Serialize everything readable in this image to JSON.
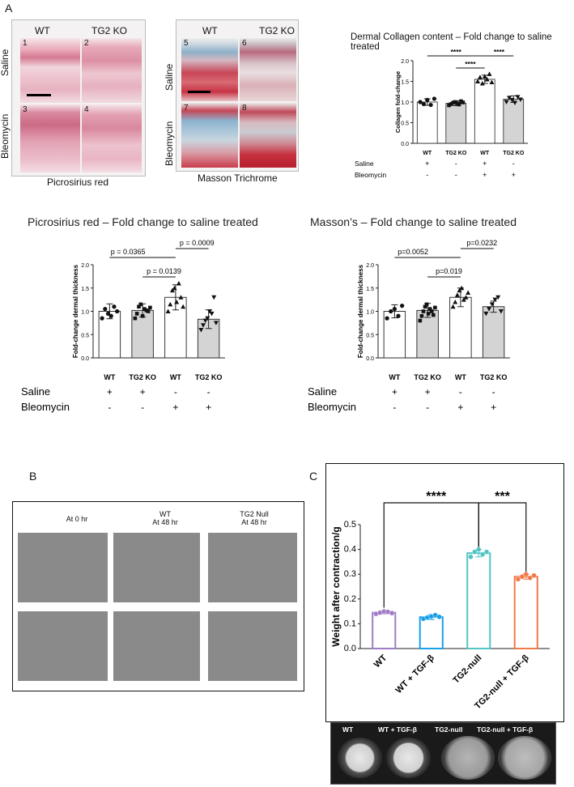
{
  "panel_letters": {
    "a": "A",
    "b": "B",
    "c": "C"
  },
  "micro": {
    "picro": {
      "col_wt": "WT",
      "col_ko": "TG2 KO",
      "row_saline": "Saline",
      "row_bleo": "Bleomycin",
      "tiles": [
        "1",
        "2",
        "3",
        "4"
      ],
      "caption": "Picrosirius red"
    },
    "masson": {
      "col_wt": "WT",
      "col_ko": "TG2 KO",
      "row_saline": "Saline",
      "row_bleo": "Bleomycin",
      "tiles": [
        "5",
        "6",
        "7",
        "8"
      ],
      "caption": "Masson Trichrome"
    }
  },
  "colors": {
    "pink_stain": "#e6a3b4",
    "red_stain": "#c8283c",
    "blue_stain": "#7aa7c9",
    "grey_bar": "#d4d4d4"
  },
  "condition_rows": {
    "saline": "Saline",
    "bleomycin": "Bleomycin",
    "plus": "+",
    "minus": "-",
    "small_saline": [
      "+",
      "-",
      "+",
      "-"
    ],
    "small_bleo": [
      "-",
      "-",
      "+",
      "+"
    ],
    "big_saline": [
      "+",
      "+",
      "-",
      "-"
    ],
    "big_bleo": [
      "-",
      "-",
      "+",
      "+"
    ]
  },
  "chart_data": [
    {
      "type": "bar",
      "title": "Dermal Collagen content – Fold change to saline treated",
      "ylabel": "Collagen fold-change",
      "categories": [
        "WT",
        "TG2 KO",
        "WT",
        "TG2 KO"
      ],
      "values": [
        1.0,
        0.97,
        1.55,
        1.07
      ],
      "errors": [
        0.08,
        0.06,
        0.1,
        0.08
      ],
      "fills": [
        "#ffffff",
        "#d4d4d4",
        "#ffffff",
        "#d4d4d4"
      ],
      "ylim": [
        0,
        2.0
      ],
      "yticks": [
        "0.0",
        "0.5",
        "1.0",
        "1.5",
        "2.0"
      ],
      "significance": [
        "****",
        "****",
        "****"
      ],
      "points": [
        [
          1.0,
          0.95,
          1.05,
          0.93,
          1.08
        ],
        [
          0.92,
          0.95,
          0.98,
          1.0,
          0.97,
          0.94,
          1.02,
          0.99
        ],
        [
          1.5,
          1.6,
          1.45,
          1.62,
          1.55,
          1.68,
          1.48
        ],
        [
          1.0,
          1.1,
          1.05,
          0.98,
          1.12,
          1.06
        ]
      ]
    },
    {
      "type": "bar",
      "title": "Picrosirius red – Fold change to saline treated",
      "ylabel": "Fold-change dermal thickness",
      "categories": [
        "WT",
        "TG2 KO",
        "WT",
        "TG2 KO"
      ],
      "values": [
        1.0,
        1.02,
        1.3,
        0.83
      ],
      "errors": [
        0.16,
        0.14,
        0.27,
        0.2
      ],
      "fills": [
        "#ffffff",
        "#d4d4d4",
        "#ffffff",
        "#d4d4d4"
      ],
      "ylim": [
        0,
        2.0
      ],
      "yticks": [
        "0.0",
        "0.5",
        "1.0",
        "1.5",
        "2.0"
      ],
      "pvalues": [
        "p = 0.0365",
        "p = 0.0009",
        "p = 0.0139"
      ],
      "points": [
        [
          0.85,
          1.05,
          0.95,
          0.9,
          1.1,
          1.0
        ],
        [
          0.85,
          0.95,
          1.1,
          1.15,
          0.9,
          1.05,
          1.02,
          1.0,
          1.08
        ],
        [
          1.0,
          1.15,
          1.45,
          1.5,
          1.2,
          1.6,
          1.3,
          1.1
        ],
        [
          0.6,
          0.7,
          0.8,
          0.85,
          1.0,
          0.95,
          1.3,
          0.75
        ]
      ]
    },
    {
      "type": "bar",
      "title": "Masson’s – Fold change to saline treated",
      "ylabel": "Fold-change dermal thickness",
      "categories": [
        "WT",
        "TG2 KO",
        "WT",
        "TG2 KO"
      ],
      "values": [
        1.0,
        1.02,
        1.3,
        1.1
      ],
      "errors": [
        0.14,
        0.15,
        0.2,
        0.12
      ],
      "fills": [
        "#ffffff",
        "#d4d4d4",
        "#ffffff",
        "#d4d4d4"
      ],
      "ylim": [
        0,
        2.0
      ],
      "yticks": [
        "0.0",
        "0.5",
        "1.0",
        "1.5",
        "2.0"
      ],
      "pvalues": [
        "p=0.0052",
        "p=0.0232",
        "p=0.019"
      ],
      "points": [
        [
          0.85,
          1.0,
          1.05,
          0.9,
          1.12
        ],
        [
          0.8,
          0.9,
          1.0,
          1.1,
          1.15,
          0.95,
          1.05,
          1.0,
          0.92,
          1.08
        ],
        [
          1.1,
          1.2,
          1.35,
          1.45,
          1.5,
          1.25,
          1.3,
          1.4
        ],
        [
          0.95,
          1.05,
          1.15,
          1.25,
          1.3,
          1.0
        ]
      ]
    },
    {
      "type": "bar",
      "ylabel": "Weight after contraction/g",
      "categories": [
        "WT",
        "WT + TGF-β",
        "TG2-null",
        "TG2-null + TGF-β"
      ],
      "values": [
        0.145,
        0.127,
        0.385,
        0.29
      ],
      "errors": [
        0.005,
        0.01,
        0.015,
        0.01
      ],
      "colors": [
        "#a07cc5",
        "#1aa0e6",
        "#52c4c4",
        "#f07a4a"
      ],
      "ylim": [
        0,
        0.5
      ],
      "yticks": [
        "0.0",
        "0.1",
        "0.2",
        "0.3",
        "0.4",
        "0.5"
      ],
      "significance": [
        "****",
        "***"
      ],
      "points": [
        [
          0.14,
          0.145,
          0.15,
          0.148,
          0.143
        ],
        [
          0.12,
          0.125,
          0.13,
          0.135,
          0.128
        ],
        [
          0.37,
          0.39,
          0.4,
          0.38,
          0.39
        ],
        [
          0.28,
          0.29,
          0.3,
          0.285,
          0.295
        ]
      ]
    }
  ],
  "scratch": {
    "headers": [
      "At 0 hr",
      "WT\nAt 48 hr",
      "TG2 Null\nAt 48 hr"
    ]
  },
  "gel": {
    "labels": [
      "WT",
      "WT + TGF-β",
      "TG2-null",
      "TG2-null + TGF-β"
    ]
  }
}
